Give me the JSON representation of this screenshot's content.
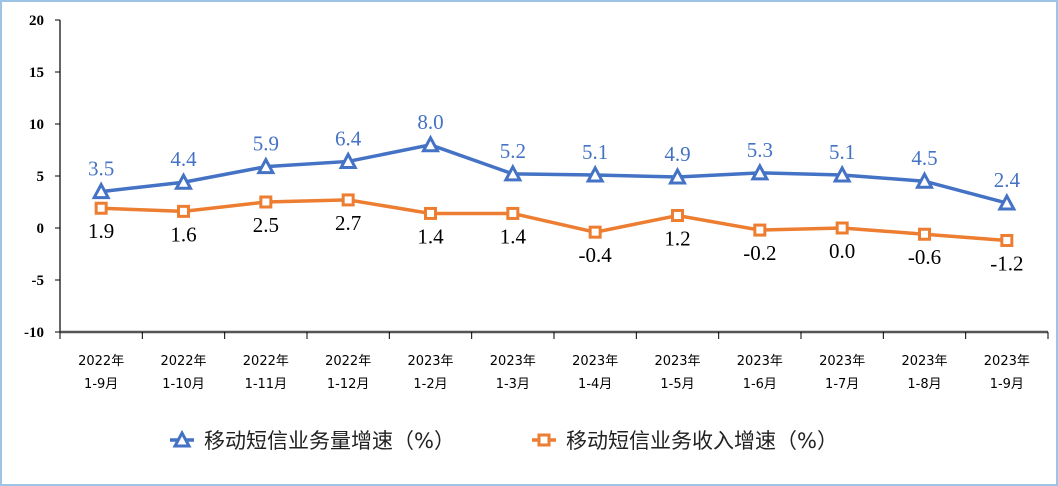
{
  "chart_data": {
    "type": "line",
    "title": "",
    "xlabel": "",
    "ylabel": "",
    "ylim": [
      -10,
      20
    ],
    "yticks": [
      -10,
      -5,
      0,
      5,
      10,
      15,
      20
    ],
    "ytick_labels": [
      "-10",
      "-5",
      "0",
      "5",
      "10",
      "15",
      "20"
    ],
    "grid": false,
    "legend_position": "bottom",
    "categories": [
      [
        "2022年",
        "1-9月"
      ],
      [
        "2022年",
        "1-10月"
      ],
      [
        "2022年",
        "1-11月"
      ],
      [
        "2022年",
        "1-12月"
      ],
      [
        "2023年",
        "1-2月"
      ],
      [
        "2023年",
        "1-3月"
      ],
      [
        "2023年",
        "1-4月"
      ],
      [
        "2023年",
        "1-5月"
      ],
      [
        "2023年",
        "1-6月"
      ],
      [
        "2023年",
        "1-7月"
      ],
      [
        "2023年",
        "1-8月"
      ],
      [
        "2023年",
        "1-9月"
      ]
    ],
    "series": [
      {
        "name": "移动短信业务量增速（%）",
        "color": "#4472c4",
        "marker": "triangle",
        "label_color": "#4472c4",
        "label_position": "above",
        "values": [
          3.5,
          4.4,
          5.9,
          6.4,
          8.0,
          5.2,
          5.1,
          4.9,
          5.3,
          5.1,
          4.5,
          2.4
        ],
        "labels": [
          "3.5",
          "4.4",
          "5.9",
          "6.4",
          "8.0",
          "5.2",
          "5.1",
          "4.9",
          "5.3",
          "5.1",
          "4.5",
          "2.4"
        ]
      },
      {
        "name": "移动短信业务收入增速（%）",
        "color": "#ed7d31",
        "marker": "square",
        "label_color": "#000000",
        "label_position": "below",
        "values": [
          1.9,
          1.6,
          2.5,
          2.7,
          1.4,
          1.4,
          -0.4,
          1.2,
          -0.2,
          0.0,
          -0.6,
          -1.2
        ],
        "labels": [
          "1.9",
          "1.6",
          "2.5",
          "2.7",
          "1.4",
          "1.4",
          "-0.4",
          "1.2",
          "-0.2",
          "0.0",
          "-0.6",
          "-1.2"
        ]
      }
    ]
  }
}
